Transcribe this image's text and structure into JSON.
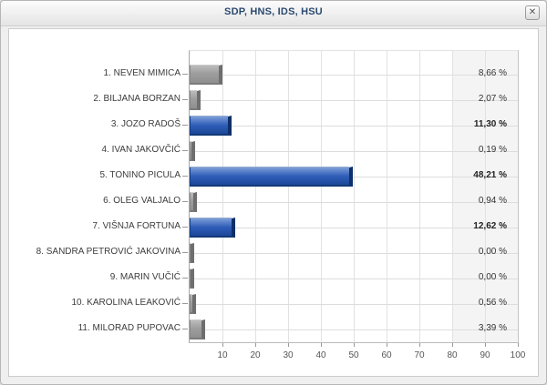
{
  "window": {
    "title": "SDP, HNS, IDS, HSU",
    "close_icon": "✕"
  },
  "chart_data": {
    "type": "bar",
    "orientation": "horizontal",
    "title": "SDP, HNS, IDS, HSU",
    "categories": [
      "1. NEVEN MIMICA",
      "2. BILJANA BORZAN",
      "3. JOZO RADOŠ",
      "4. IVAN JAKOVČIĆ",
      "5. TONINO PICULA",
      "6. OLEG VALJALO",
      "7. VIŠNJA FORTUNA",
      "8. SANDRA PETROVIĆ JAKOVINA",
      "9. MARIN VUČIĆ",
      "10. KAROLINA LEAKOVIĆ",
      "11. MILORAD PUPOVAC"
    ],
    "values": [
      8.66,
      2.07,
      11.3,
      0.19,
      48.21,
      0.94,
      12.62,
      0.0,
      0.0,
      0.56,
      3.39
    ],
    "value_labels": [
      "8,66 %",
      "2,07 %",
      "11,30 %",
      "0,19 %",
      "48,21 %",
      "0,94 %",
      "12,62 %",
      "0,00 %",
      "0,00 %",
      "0,56 %",
      "3,39 %"
    ],
    "highlighted": [
      false,
      false,
      true,
      false,
      true,
      false,
      true,
      false,
      false,
      false,
      false
    ],
    "xlim": [
      0,
      100
    ],
    "x_ticks": [
      10,
      20,
      30,
      40,
      50,
      60,
      70,
      80,
      90,
      100
    ],
    "grid": true,
    "value_column_shaded": true,
    "legend": "none",
    "colors": {
      "bar_default": "#9a9a9a",
      "bar_highlight": "#2456ae",
      "value_band": "#f4f4f4",
      "title_text": "#2b4a70",
      "grid_line": "#e2e2e2"
    }
  }
}
